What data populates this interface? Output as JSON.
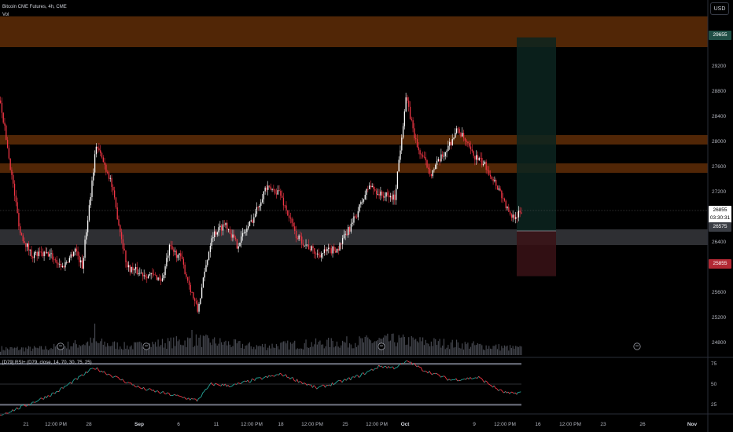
{
  "legend": {
    "symbol": "Bitcoin CME Futures, 4h, CME",
    "volume": "Vol",
    "rsi": "[D79] RSI+ (D79, close, 14, 70, 30, 75, 25)"
  },
  "currency_button": "USD",
  "price_axis": {
    "ticks": [
      "29200",
      "28800",
      "28400",
      "28000",
      "27600",
      "27200",
      "26400",
      "26000",
      "25600",
      "25200",
      "24800"
    ],
    "tags": {
      "target": "29655",
      "last_price": "26855",
      "countdown": "03:30:31",
      "entry": "26575",
      "stop": "25855"
    }
  },
  "rsi_axis": {
    "ticks": [
      "75",
      "50",
      "25"
    ]
  },
  "time_axis": {
    "ticks": [
      "21",
      "12:00 PM",
      "28",
      "Sep",
      "6",
      "11",
      "12:00 PM",
      "18",
      "12:00 PM",
      "25",
      "12:00 PM",
      "Oct",
      "9",
      "12:00 PM",
      "16",
      "12:00 PM",
      "23",
      "26",
      "Nov"
    ]
  },
  "event_markers": [
    "event-marker",
    "event-marker",
    "event-marker",
    "event-marker"
  ],
  "colors": {
    "up": "#ffffff",
    "down": "#f23645",
    "zone": "#5a2a07",
    "gray_zone": "#2e2f33",
    "target_tag": "#1f4e45",
    "stop_tag": "#b22833",
    "rsi_up": "#26a69a",
    "rsi_down": "#f23645"
  },
  "chart_data": {
    "type": "candlestick",
    "symbol": "Bitcoin CME Futures",
    "interval": "4h",
    "ylim": [
      24600,
      29900
    ],
    "anchors": [
      [
        0,
        28650
      ],
      [
        7,
        27600
      ],
      [
        14,
        26550
      ],
      [
        22,
        26200
      ],
      [
        35,
        26200
      ],
      [
        44,
        26000
      ],
      [
        49,
        26150
      ],
      [
        53,
        26300
      ],
      [
        58,
        26000
      ],
      [
        68,
        27950
      ],
      [
        78,
        27400
      ],
      [
        90,
        26000
      ],
      [
        100,
        25900
      ],
      [
        110,
        25850
      ],
      [
        115,
        25800
      ],
      [
        120,
        26300
      ],
      [
        128,
        26150
      ],
      [
        140,
        25300
      ],
      [
        150,
        26500
      ],
      [
        160,
        26700
      ],
      [
        168,
        26350
      ],
      [
        180,
        26800
      ],
      [
        188,
        27250
      ],
      [
        198,
        27200
      ],
      [
        210,
        26500
      ],
      [
        225,
        26200
      ],
      [
        240,
        26300
      ],
      [
        250,
        26700
      ],
      [
        262,
        27300
      ],
      [
        270,
        27150
      ],
      [
        280,
        27100
      ],
      [
        288,
        28700
      ],
      [
        296,
        27900
      ],
      [
        306,
        27500
      ],
      [
        315,
        27800
      ],
      [
        325,
        28200
      ],
      [
        335,
        27800
      ],
      [
        345,
        27600
      ],
      [
        355,
        27200
      ],
      [
        362,
        26800
      ],
      [
        370,
        26855
      ]
    ],
    "volume_profile": [
      [
        0,
        0.3
      ],
      [
        30,
        0.3
      ],
      [
        65,
        0.6
      ],
      [
        90,
        0.4
      ],
      [
        140,
        0.7
      ],
      [
        180,
        0.4
      ],
      [
        280,
        0.7
      ],
      [
        370,
        0.3
      ]
    ],
    "volume_spikes": [
      [
        67,
        1.0
      ],
      [
        136,
        0.8
      ],
      [
        236,
        0.45
      ],
      [
        292,
        0.6
      ],
      [
        320,
        0.4
      ]
    ],
    "rsi_anchors": [
      [
        0,
        12
      ],
      [
        20,
        25
      ],
      [
        40,
        40
      ],
      [
        67,
        70
      ],
      [
        80,
        60
      ],
      [
        100,
        45
      ],
      [
        140,
        30
      ],
      [
        150,
        50
      ],
      [
        165,
        48
      ],
      [
        180,
        55
      ],
      [
        200,
        62
      ],
      [
        225,
        45
      ],
      [
        240,
        52
      ],
      [
        255,
        60
      ],
      [
        270,
        72
      ],
      [
        280,
        70
      ],
      [
        290,
        78
      ],
      [
        300,
        68
      ],
      [
        320,
        55
      ],
      [
        340,
        58
      ],
      [
        355,
        42
      ],
      [
        362,
        38
      ],
      [
        370,
        40
      ]
    ],
    "resistance_zones": [
      [
        29500,
        29990
      ],
      [
        27950,
        28100
      ],
      [
        27500,
        27650
      ]
    ],
    "support_zone": [
      26350,
      26600
    ],
    "position": {
      "target": 29655,
      "entry": 26575,
      "stop": 25855
    },
    "rsi_levels": [
      75,
      50,
      25
    ]
  }
}
